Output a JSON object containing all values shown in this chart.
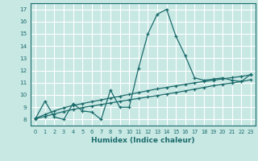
{
  "xlabel": "Humidex (Indice chaleur)",
  "ylabel": "",
  "bg_color": "#c8e8e4",
  "grid_color": "#ffffff",
  "line_color": "#1a6b6b",
  "xlim": [
    -0.5,
    23.5
  ],
  "ylim": [
    7.5,
    17.5
  ],
  "xticks": [
    0,
    1,
    2,
    3,
    4,
    5,
    6,
    7,
    8,
    9,
    10,
    11,
    12,
    13,
    14,
    15,
    16,
    17,
    18,
    19,
    20,
    21,
    22,
    23
  ],
  "yticks": [
    8,
    9,
    10,
    11,
    12,
    13,
    14,
    15,
    16,
    17
  ],
  "line1_x": [
    0,
    1,
    2,
    3,
    4,
    5,
    6,
    7,
    8,
    9,
    10,
    11,
    12,
    13,
    14,
    15,
    16,
    17,
    18,
    19,
    20,
    21,
    22,
    23
  ],
  "line1_y": [
    8.1,
    9.5,
    8.2,
    8.0,
    9.3,
    8.7,
    8.6,
    8.0,
    10.4,
    9.0,
    9.0,
    12.2,
    15.0,
    16.6,
    17.0,
    14.8,
    13.2,
    11.4,
    11.2,
    11.3,
    11.4,
    11.2,
    11.1,
    11.7
  ],
  "line2_x": [
    0,
    1,
    2,
    3,
    4,
    5,
    6,
    7,
    8,
    9,
    10,
    11,
    12,
    13,
    14,
    15,
    16,
    17,
    18,
    19,
    20,
    21,
    22,
    23
  ],
  "line2_y": [
    8.1,
    8.4,
    8.7,
    8.95,
    9.15,
    9.3,
    9.45,
    9.6,
    9.75,
    9.9,
    10.05,
    10.2,
    10.35,
    10.5,
    10.62,
    10.75,
    10.87,
    11.0,
    11.1,
    11.2,
    11.32,
    11.42,
    11.52,
    11.65
  ],
  "line3_x": [
    0,
    1,
    2,
    3,
    4,
    5,
    6,
    7,
    8,
    9,
    10,
    11,
    12,
    13,
    14,
    15,
    16,
    17,
    18,
    19,
    20,
    21,
    22,
    23
  ],
  "line3_y": [
    8.05,
    8.25,
    8.45,
    8.65,
    8.82,
    8.97,
    9.1,
    9.22,
    9.35,
    9.48,
    9.6,
    9.72,
    9.84,
    9.95,
    10.08,
    10.2,
    10.34,
    10.48,
    10.62,
    10.76,
    10.88,
    10.98,
    11.1,
    11.25
  ]
}
